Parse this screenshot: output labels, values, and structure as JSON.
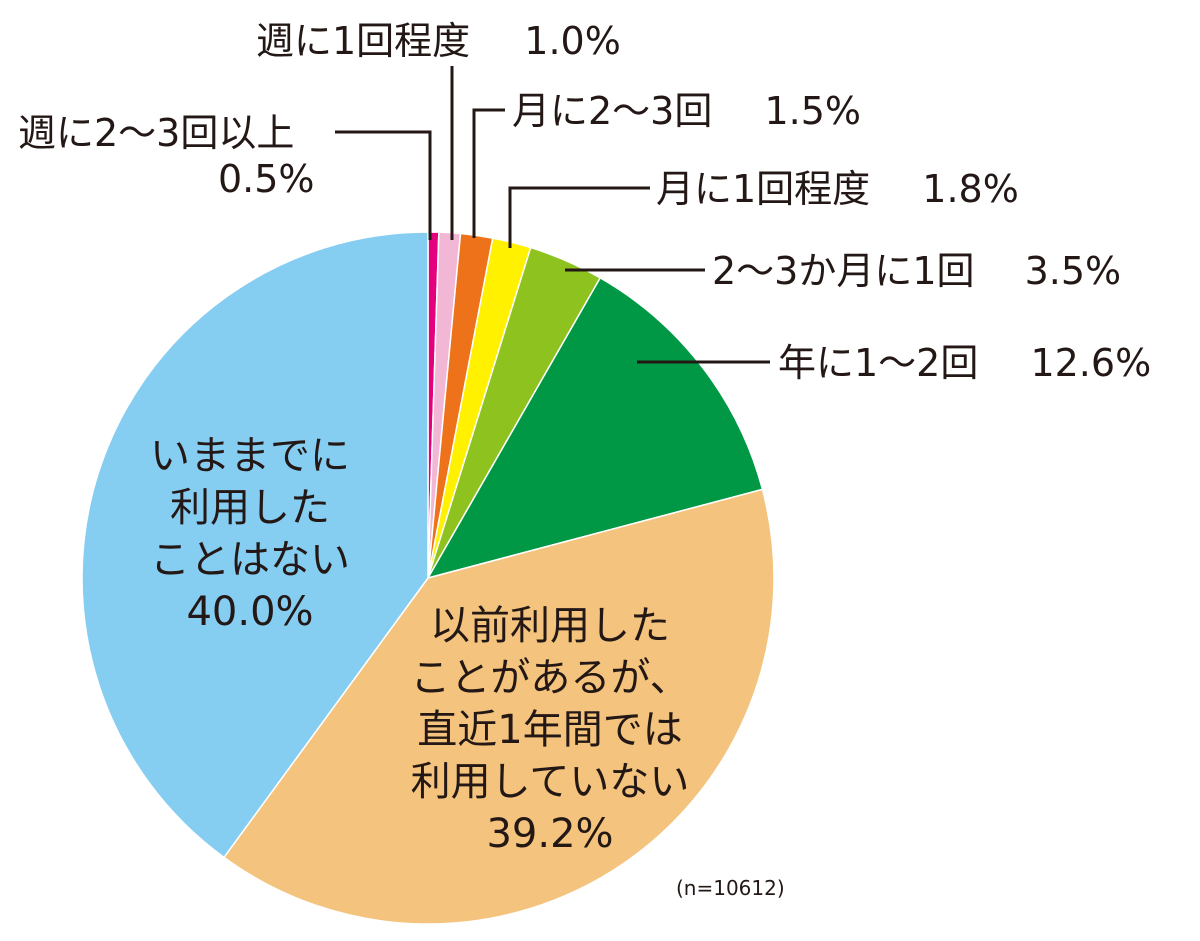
{
  "chart_data": {
    "type": "pie",
    "categories": [
      "週に2〜3回以上",
      "週に1回程度",
      "月に2〜3回",
      "月に1回程度",
      "2〜3か月に1回",
      "年に1〜2回",
      "以前利用したことがあるが、直近1年間では利用していない",
      "いままでに利用したことはない"
    ],
    "values": [
      0.5,
      1.0,
      1.5,
      1.8,
      3.5,
      12.6,
      39.2,
      40.0
    ],
    "colors": [
      "#e4007f",
      "#f2b7d5",
      "#ee7219",
      "#fff100",
      "#8dc21f",
      "#009844",
      "#f4c37d",
      "#86cdf2"
    ],
    "start": "12 o'clock",
    "direction": "clockwise",
    "legend": "none (direct labels)"
  },
  "labels": {
    "s0": {
      "name": "週に2〜3回以上",
      "value": "0.5%"
    },
    "s1": {
      "name": "週に1回程度",
      "value": "1.0%"
    },
    "s2": {
      "name": "月に2〜3回",
      "value": "1.5%"
    },
    "s3": {
      "name": "月に1回程度",
      "value": "1.8%"
    },
    "s4": {
      "name": "2〜3か月に1回",
      "value": "3.5%"
    },
    "s5": {
      "name": "年に1〜2回",
      "value": "12.6%"
    },
    "s6": {
      "lines": [
        "以前利用した",
        "ことがあるが、",
        "直近1年間では",
        "利用していない"
      ],
      "value": "39.2%"
    },
    "s7": {
      "lines": [
        "いままでに",
        "利用した",
        "ことはない"
      ],
      "value": "40.0%"
    }
  },
  "note": "(n=10612)"
}
